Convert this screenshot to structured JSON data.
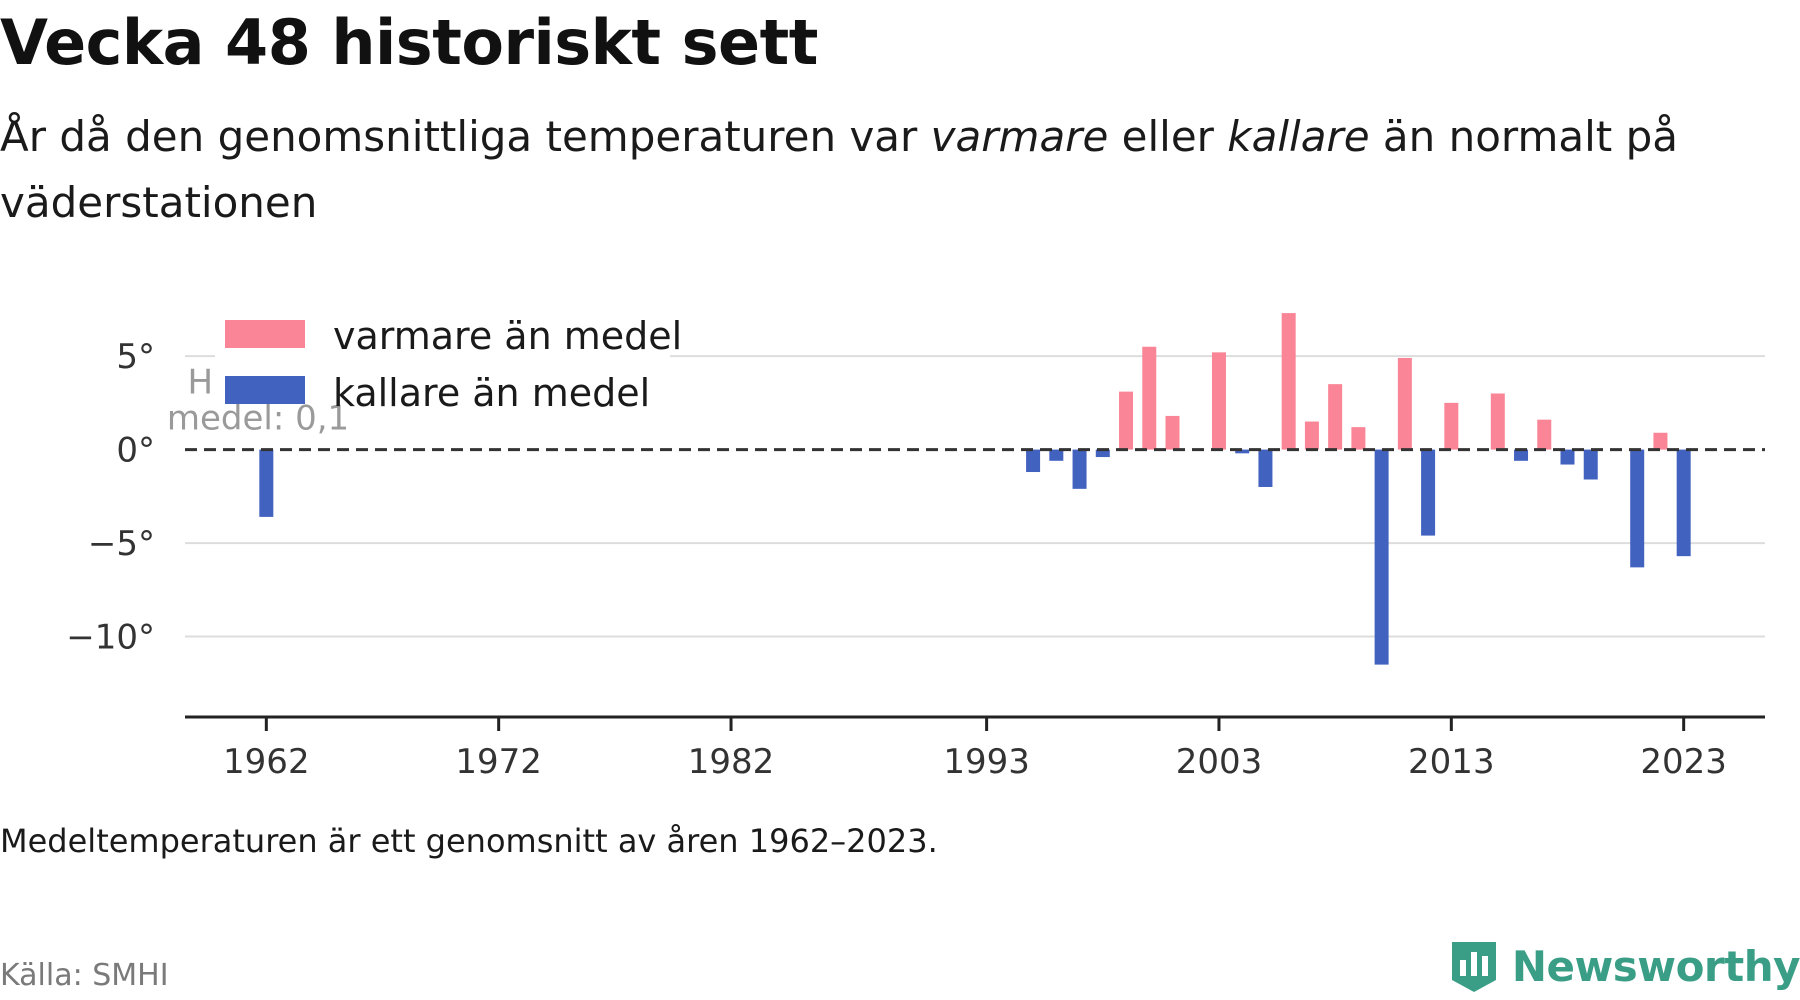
{
  "title": "Vecka 48 historiskt sett",
  "subtitle": {
    "part1": "År då den genomsnittliga temperaturen var ",
    "warm_word": "varmare",
    "part2": " eller ",
    "cold_word": "kallare",
    "part3": " än normalt på väderstationen"
  },
  "footnote": "Medeltemperaturen är ett genomsnitt av åren 1962–2023.",
  "source": "Källa: SMHI",
  "brand": "Newsworthy",
  "colors": {
    "warm": "#f98596",
    "cold": "#4262c0",
    "grid": "#dddddd",
    "axis": "#222222",
    "text": "#333333",
    "brand": "#3a9e86"
  },
  "chart_data": {
    "type": "bar",
    "ylim": [
      -13.5,
      8
    ],
    "xlim": [
      1958.5,
      2026.5
    ],
    "yticks": [
      5,
      0,
      -5,
      -10
    ],
    "ytick_labels": [
      "5°",
      "0°",
      "−5°",
      "−10°"
    ],
    "xticks": [
      1962,
      1972,
      1982,
      1993,
      2003,
      2013,
      2023
    ],
    "xtick_labels": [
      "1962",
      "1972",
      "1982",
      "1993",
      "2003",
      "2013",
      "2023"
    ],
    "legend": {
      "placement": "top-left",
      "entries": [
        {
          "label": "varmare än medel",
          "color": "#f98596"
        },
        {
          "label": "kallare än medel",
          "color": "#4262c0"
        }
      ]
    },
    "reference_line": {
      "value": 0,
      "label_line1": "Historiskt",
      "label_line2": "medel: 0,1"
    },
    "series": [
      {
        "x": [
          1962,
          1995,
          1996,
          1997,
          1998,
          1999,
          2000,
          2001,
          2003,
          2004,
          2005,
          2006,
          2007,
          2008,
          2009,
          2010,
          2011,
          2012,
          2013,
          2015,
          2016,
          2017,
          2018,
          2019,
          2021,
          2022,
          2023
        ],
        "values": [
          -3.6,
          -1.2,
          -0.6,
          -2.1,
          -0.4,
          3.1,
          5.5,
          1.8,
          5.2,
          -0.2,
          -2.0,
          7.3,
          1.5,
          3.5,
          1.2,
          -11.5,
          4.9,
          -4.6,
          2.5,
          3.0,
          -0.6,
          1.6,
          -0.8,
          -1.6,
          -6.3,
          0.9,
          -5.7
        ]
      }
    ]
  }
}
